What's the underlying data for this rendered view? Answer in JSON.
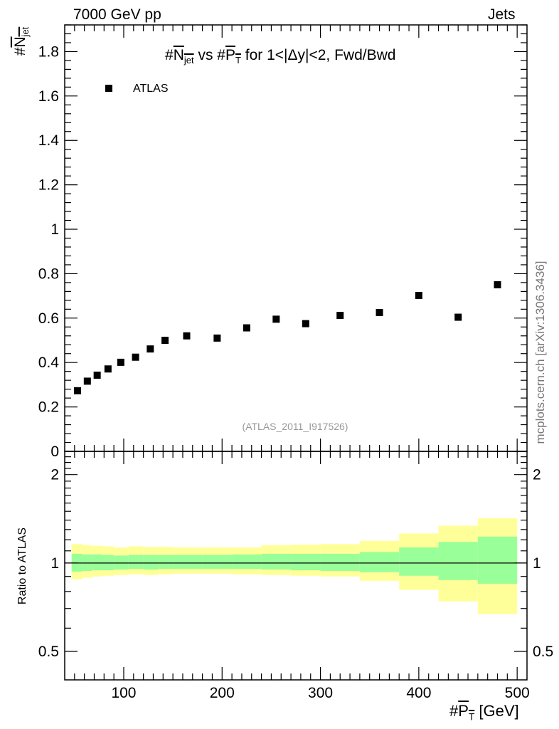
{
  "header": {
    "left": "7000 GeV pp",
    "right": "Jets",
    "side_label": "mcplots.cern.ch [arXiv:1306.3436]"
  },
  "chart_data": [
    {
      "type": "scatter",
      "title": {
        "hash": "#",
        "n": "N",
        "jet": "jet",
        "vs": " vs ",
        "p": "P",
        "t": "T",
        "rest": " for 1<|Δy|<2, Fwd/Bwd"
      },
      "ylabel": {
        "hash": "#",
        "n": "N",
        "jet": "jet"
      },
      "xlim": [
        40,
        510
      ],
      "ylim": [
        0,
        1.92
      ],
      "yticks": [
        0,
        0.2,
        0.4,
        0.6,
        0.8,
        1,
        1.2,
        1.4,
        1.6,
        1.8
      ],
      "ytick_labels": [
        "0",
        "0.2",
        "0.4",
        "0.6",
        "0.8",
        "1",
        "1.2",
        "1.4",
        "1.6",
        "1.8"
      ],
      "legend": [
        "ATLAS"
      ],
      "annotation": "(ATLAS_2011_I917526)",
      "series": [
        {
          "name": "ATLAS",
          "color": "#000000",
          "x": [
            53,
            63,
            73,
            84,
            97,
            112,
            127,
            142,
            164,
            195,
            225,
            255,
            285,
            320,
            360,
            400,
            440,
            480
          ],
          "y": [
            0.273,
            0.316,
            0.343,
            0.371,
            0.401,
            0.424,
            0.461,
            0.5,
            0.52,
            0.51,
            0.556,
            0.595,
            0.575,
            0.612,
            0.625,
            0.702,
            0.604,
            0.75
          ]
        }
      ]
    },
    {
      "type": "area",
      "ylabel": "Ratio to ATLAS",
      "ylim": [
        0.4,
        2.4
      ],
      "yscale": "log",
      "yticks": [
        0.5,
        1,
        2
      ],
      "ytick_labels": [
        "0.5",
        "1",
        "2"
      ],
      "xticks": [
        100,
        200,
        300,
        400,
        500
      ],
      "xtick_labels": [
        "100",
        "200",
        "300",
        "400",
        "500"
      ],
      "xlabel": {
        "hash": "#",
        "p": "P",
        "t": "T",
        "unit": " [GeV]"
      },
      "reference_line": 1,
      "colors": {
        "outer_band": "#ffff99",
        "inner_band": "#99ff99"
      },
      "bin_edges": [
        47,
        58,
        68,
        78,
        90,
        105,
        120,
        135,
        150,
        180,
        210,
        240,
        270,
        300,
        340,
        380,
        420,
        460,
        500
      ],
      "outer_band": {
        "lo": [
          0.88,
          0.89,
          0.9,
          0.905,
          0.91,
          0.915,
          0.91,
          0.915,
          0.92,
          0.92,
          0.915,
          0.91,
          0.905,
          0.9,
          0.87,
          0.81,
          0.74,
          0.67
        ],
        "hi": [
          1.16,
          1.15,
          1.145,
          1.14,
          1.13,
          1.14,
          1.135,
          1.135,
          1.13,
          1.13,
          1.13,
          1.15,
          1.155,
          1.16,
          1.19,
          1.26,
          1.34,
          1.42
        ]
      },
      "inner_band": {
        "lo": [
          0.935,
          0.94,
          0.945,
          0.945,
          0.95,
          0.955,
          0.95,
          0.955,
          0.955,
          0.955,
          0.955,
          0.95,
          0.945,
          0.94,
          0.93,
          0.905,
          0.875,
          0.85
        ],
        "hi": [
          1.075,
          1.07,
          1.07,
          1.065,
          1.06,
          1.065,
          1.065,
          1.065,
          1.065,
          1.065,
          1.07,
          1.075,
          1.075,
          1.075,
          1.09,
          1.13,
          1.18,
          1.23
        ]
      }
    }
  ]
}
